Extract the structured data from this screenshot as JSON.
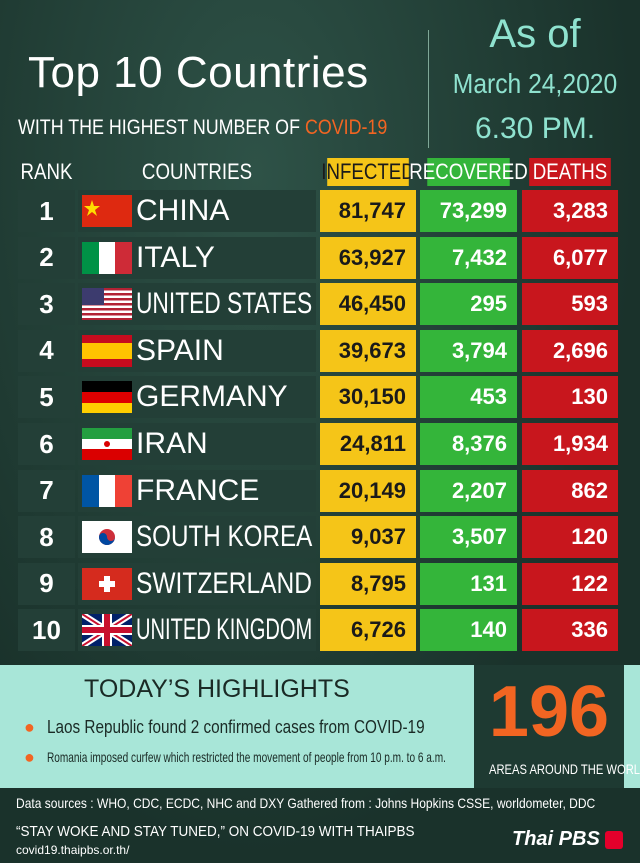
{
  "header": {
    "title": "Top 10 Countries",
    "subtitle": "WITH THE HIGHEST NUMBER OF",
    "subtitle_highlight": "COVID-19",
    "as_of": "As of",
    "date": "March 24,2020",
    "time": "6.30 PM."
  },
  "table": {
    "columns": [
      "RANK",
      "COUNTRIES",
      "INFECTED",
      "RECOVERED",
      "DEATHS"
    ],
    "rows": [
      [
        "1",
        "CHINA",
        "81,747",
        "73,299",
        "3,283"
      ],
      [
        "2",
        "ITALY",
        "63,927",
        "7,432",
        "6,077"
      ],
      [
        "3",
        "UNITED STATES",
        "46,450",
        "295",
        "593"
      ],
      [
        "4",
        "SPAIN",
        "39,673",
        "3,794",
        "2,696"
      ],
      [
        "5",
        "GERMANY",
        "30,150",
        "453",
        "130"
      ],
      [
        "6",
        "IRAN",
        "24,811",
        "8,376",
        "1,934"
      ],
      [
        "7",
        "FRANCE",
        "20,149",
        "2,207",
        "862"
      ],
      [
        "8",
        "SOUTH KOREA",
        "9,037",
        "3,507",
        "120"
      ],
      [
        "9",
        "SWITZERLAND",
        "8,795",
        "131",
        "122"
      ],
      [
        "10",
        "UNITED KINGDOM",
        "6,726",
        "140",
        "336"
      ]
    ]
  },
  "highlights": {
    "title": "TODAY’S HIGHLIGHTS",
    "items": [
      "Laos Republic found 2 confirmed cases from COVID-19",
      "Romania imposed curfew which restricted the movement of people from 10 p.m. to 6 a.m."
    ],
    "count": "196",
    "count_label": "AREAS AROUND THE WORLD"
  },
  "footer": {
    "sources": "Data sources : WHO, CDC, ECDC, NHC and DXY   Gathered from : Johns Hopkins CSSE, worldometer, DDC",
    "slogan": "“STAY WOKE AND STAY TUNED,” ON COVID-19 WITH THAIPBS",
    "url": "covid19.thaipbs.or.th/",
    "brand": "Thai PBS"
  }
}
